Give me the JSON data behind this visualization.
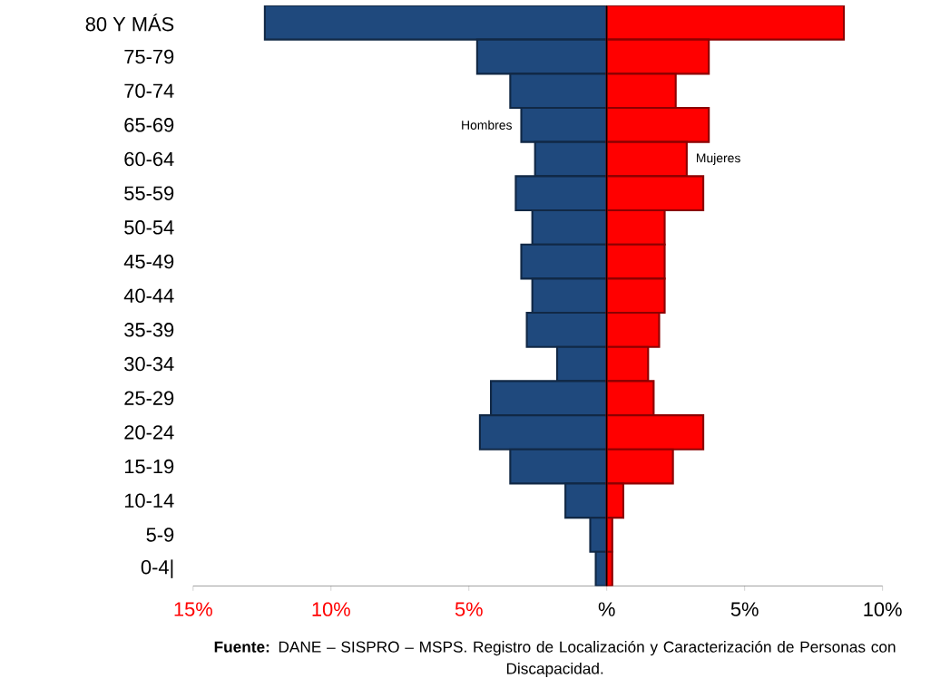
{
  "chart_data": {
    "type": "bar",
    "orientation": "horizontal",
    "categories": [
      "80 Y MÁS",
      "75-79",
      "70-74",
      "65-69",
      "60-64",
      "55-59",
      "50-54",
      "45-49",
      "40-44",
      "35-39",
      "30-34",
      "25-29",
      "20-24",
      "15-19",
      "10-14",
      "5-9",
      "0-4|"
    ],
    "series": [
      {
        "name": "Hombres",
        "color": "#1f497d",
        "values": [
          -12.4,
          -4.7,
          -3.5,
          -3.1,
          -2.6,
          -3.3,
          -2.7,
          -3.1,
          -2.7,
          -2.9,
          -1.8,
          -4.2,
          -4.6,
          -3.5,
          -1.5,
          -0.6,
          -0.4
        ]
      },
      {
        "name": "Mujeres",
        "color": "#ff0000",
        "values": [
          8.6,
          3.7,
          2.5,
          3.7,
          2.9,
          3.5,
          2.1,
          2.1,
          2.1,
          1.9,
          1.5,
          1.7,
          3.5,
          2.4,
          0.6,
          0.2,
          0.2
        ]
      }
    ],
    "xlim": [
      -15,
      10
    ],
    "xticks": [
      {
        "value": -15,
        "label": "15%"
      },
      {
        "value": -10,
        "label": "10%"
      },
      {
        "value": -5,
        "label": "5%"
      },
      {
        "value": 0,
        "label": "%"
      },
      {
        "value": 5,
        "label": "5%"
      },
      {
        "value": 10,
        "label": "10%"
      }
    ],
    "stacked": true,
    "ref_lines": [
      {
        "axis": "x",
        "value": 0,
        "color": "#000000"
      }
    ],
    "grid": false,
    "legend": false,
    "annotations": [
      "**Fuente:** DANE – SISPRO – MSPS.  Registro de Localización y Caracterización de Personas con Discapacidad."
    ]
  }
}
